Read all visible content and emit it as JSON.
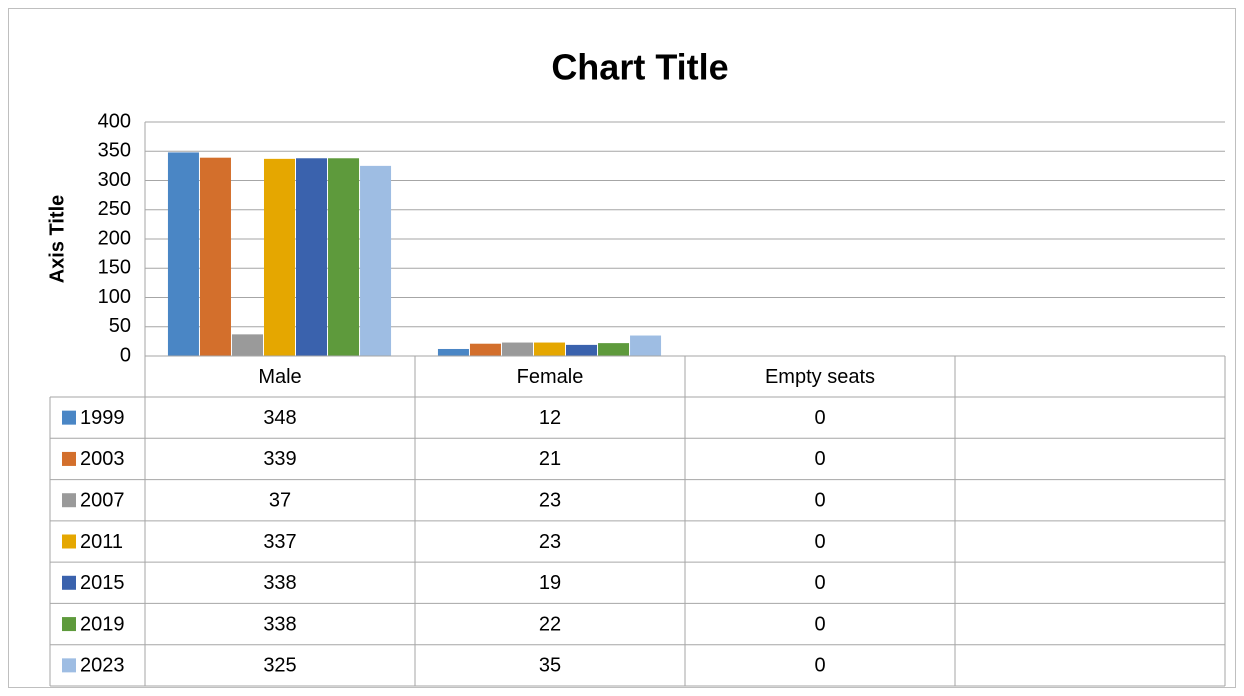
{
  "chart_data": {
    "type": "bar",
    "title": "Chart Title",
    "y_label": "Axis Title",
    "categories": [
      "Male",
      "Female",
      "Empty seats",
      null
    ],
    "series": [
      {
        "name": "1999",
        "color": "#4a86c5",
        "values": [
          348,
          12,
          0,
          null
        ]
      },
      {
        "name": "2003",
        "color": "#d36f2c",
        "values": [
          339,
          21,
          0,
          null
        ]
      },
      {
        "name": "2007",
        "color": "#9a9a9a",
        "values": [
          37,
          23,
          0,
          null
        ]
      },
      {
        "name": "2011",
        "color": "#e5a700",
        "values": [
          337,
          23,
          0,
          null
        ]
      },
      {
        "name": "2015",
        "color": "#3a62ad",
        "values": [
          338,
          19,
          0,
          null
        ]
      },
      {
        "name": "2019",
        "color": "#5e9a3c",
        "values": [
          338,
          22,
          0,
          null
        ]
      },
      {
        "name": "2023",
        "color": "#9ebde3",
        "values": [
          325,
          35,
          0,
          null
        ]
      }
    ],
    "ylim": [
      0,
      400
    ],
    "yticks": [
      0,
      50,
      100,
      150,
      200,
      250,
      300,
      350,
      400
    ],
    "grid": true,
    "data_table": true
  }
}
